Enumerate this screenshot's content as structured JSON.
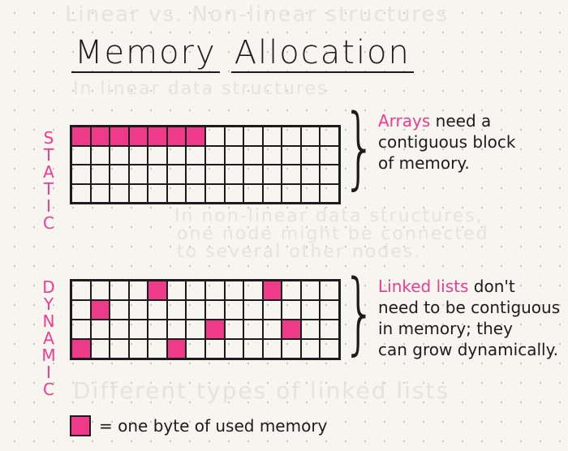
{
  "title": {
    "word1": "Memory",
    "word2": "Allocation"
  },
  "bleed_through": [
    "Linear vs. Non-linear structures",
    "In linear data structures",
    "In non-linear data structures,",
    "one node might be connected",
    "to several other nodes.",
    "Different types of linked lists"
  ],
  "static": {
    "label": [
      "S",
      "T",
      "A",
      "T",
      "I",
      "C"
    ],
    "rows": 4,
    "columns": 14,
    "used_cells": [
      [
        0,
        0
      ],
      [
        0,
        1
      ],
      [
        0,
        2
      ],
      [
        0,
        3
      ],
      [
        0,
        4
      ],
      [
        0,
        5
      ],
      [
        0,
        6
      ]
    ],
    "note_highlight": "Arrays",
    "note_line1_rest": " need a",
    "note_line2": "contiguous block",
    "note_line3": "of memory."
  },
  "dynamic": {
    "label": [
      "D",
      "Y",
      "N",
      "A",
      "M",
      "I",
      "C"
    ],
    "rows": 4,
    "columns": 14,
    "used_cells": [
      [
        0,
        4
      ],
      [
        0,
        10
      ],
      [
        1,
        1
      ],
      [
        2,
        7
      ],
      [
        2,
        11
      ],
      [
        3,
        0
      ],
      [
        3,
        5
      ]
    ],
    "note_highlight": "Linked lists",
    "note_line1_rest": " don't",
    "note_line2": "need to be contiguous",
    "note_line3": "in memory; they",
    "note_line4": "can grow dynamically."
  },
  "legend": {
    "text": "= one byte of used memory"
  },
  "colors": {
    "used": "#ee3a88",
    "accent_text": "#ee3d8e",
    "ink": "#1c1c1c"
  }
}
